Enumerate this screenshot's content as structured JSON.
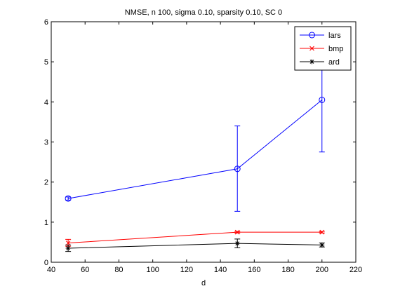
{
  "chart_data": {
    "type": "line",
    "title": "NMSE, n 100, sigma 0.10, sparsity 0.10, SC 0",
    "xlabel": "d",
    "ylabel": "",
    "xlim": [
      40,
      220
    ],
    "ylim": [
      0,
      6
    ],
    "x_ticks": [
      40,
      60,
      80,
      100,
      120,
      140,
      160,
      180,
      200,
      220
    ],
    "y_ticks": [
      0,
      1,
      2,
      3,
      4,
      5,
      6
    ],
    "x": [
      50,
      150,
      200
    ],
    "grid": false,
    "legend_position": "top-right",
    "series": [
      {
        "name": "lars",
        "color": "#0000ff",
        "marker": "circle",
        "values": [
          1.59,
          2.33,
          4.05
        ],
        "err_low": [
          1.55,
          1.27,
          2.75
        ],
        "err_high": [
          1.63,
          3.4,
          5.35
        ]
      },
      {
        "name": "bmp",
        "color": "#ff0000",
        "marker": "x",
        "values": [
          0.48,
          0.75,
          0.75
        ],
        "err_low": [
          0.4,
          0.73,
          0.73
        ],
        "err_high": [
          0.57,
          0.77,
          0.77
        ]
      },
      {
        "name": "ard",
        "color": "#000000",
        "marker": "star",
        "values": [
          0.35,
          0.47,
          0.43
        ],
        "err_low": [
          0.27,
          0.36,
          0.38
        ],
        "err_high": [
          0.43,
          0.58,
          0.48
        ]
      }
    ]
  }
}
